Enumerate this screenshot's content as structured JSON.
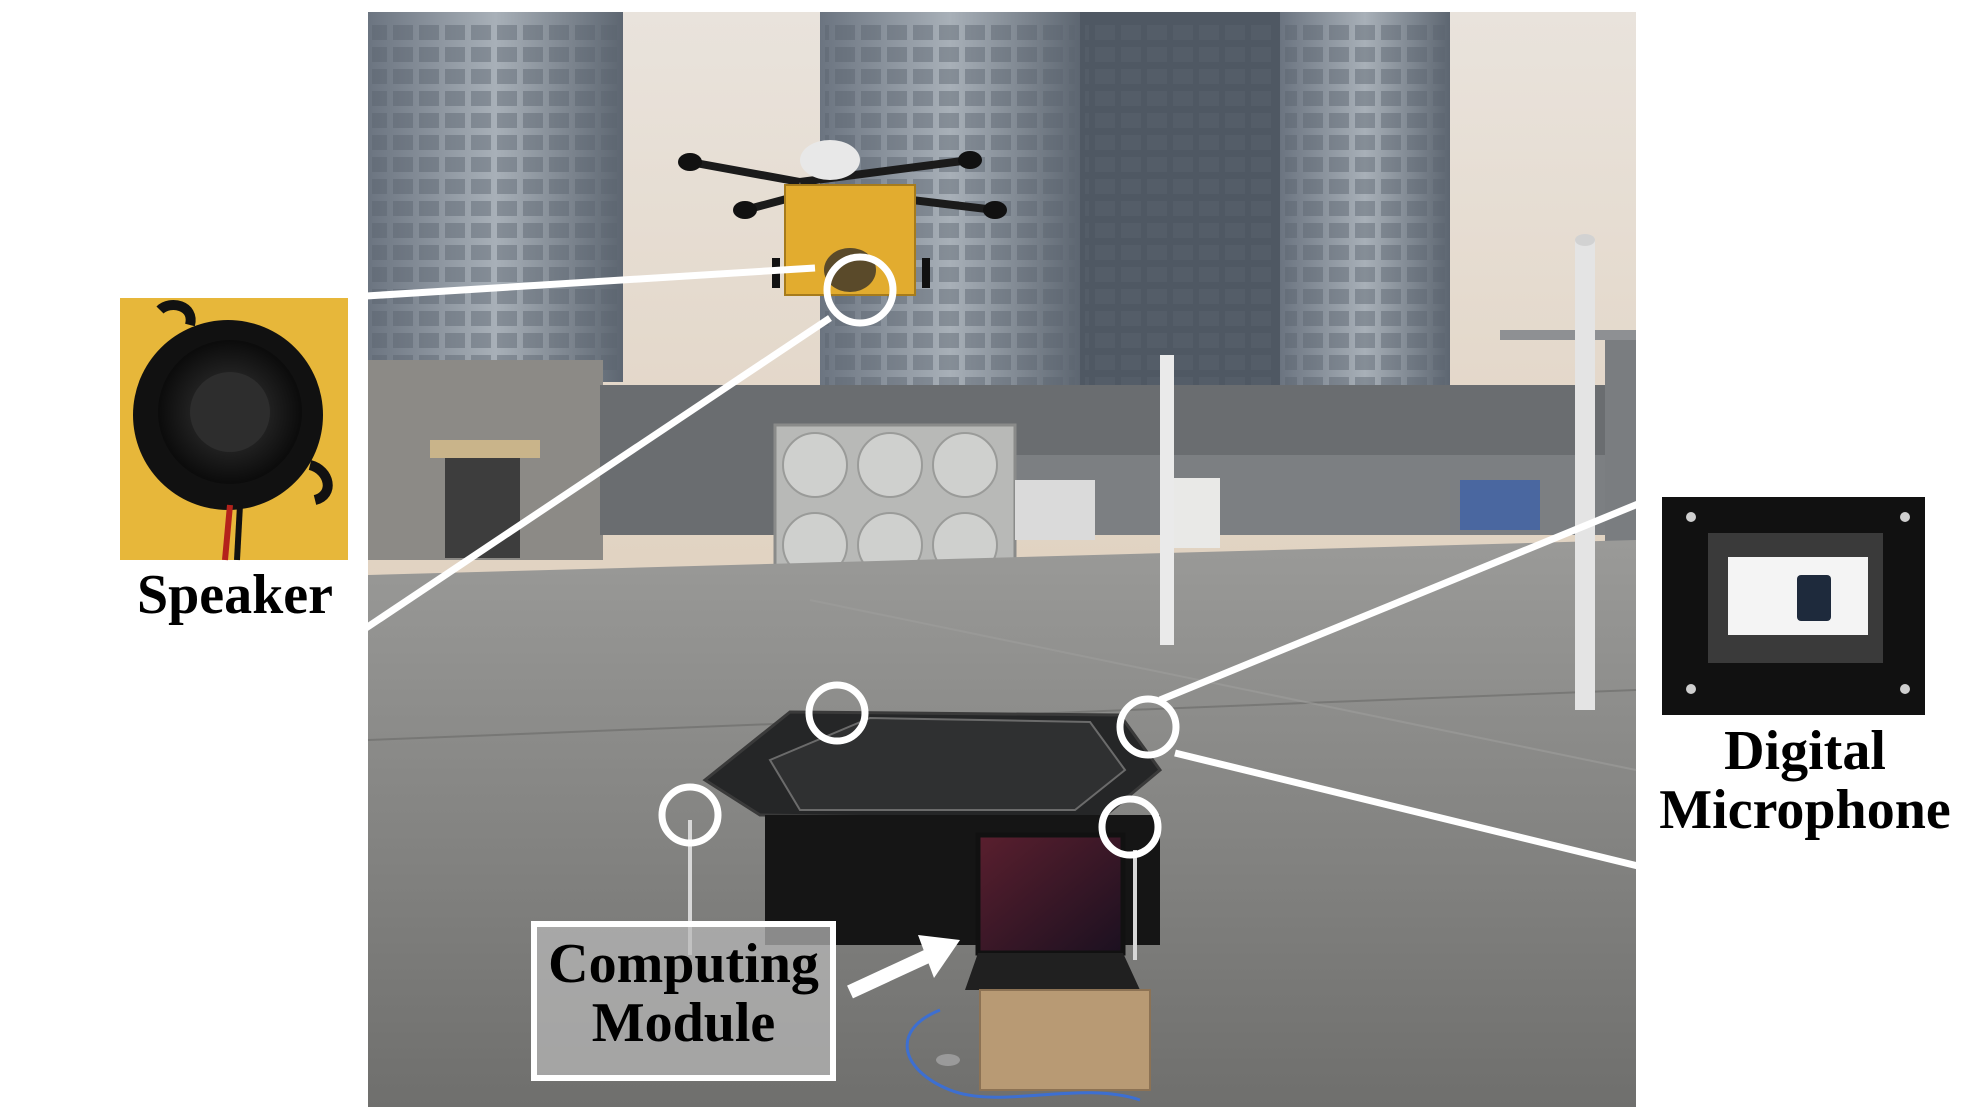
{
  "figure": {
    "labels": {
      "speaker": "Speaker",
      "microphone_line1": "Digital",
      "microphone_line2": "Microphone",
      "module_line1": "Computing",
      "module_line2": "Module"
    },
    "colors": {
      "sky": "#d8c9b8",
      "roof": "#8a8a88",
      "speaker_bg": "#e7b73a",
      "drone_payload": "#e6b02f",
      "callout": "#ffffff"
    }
  }
}
